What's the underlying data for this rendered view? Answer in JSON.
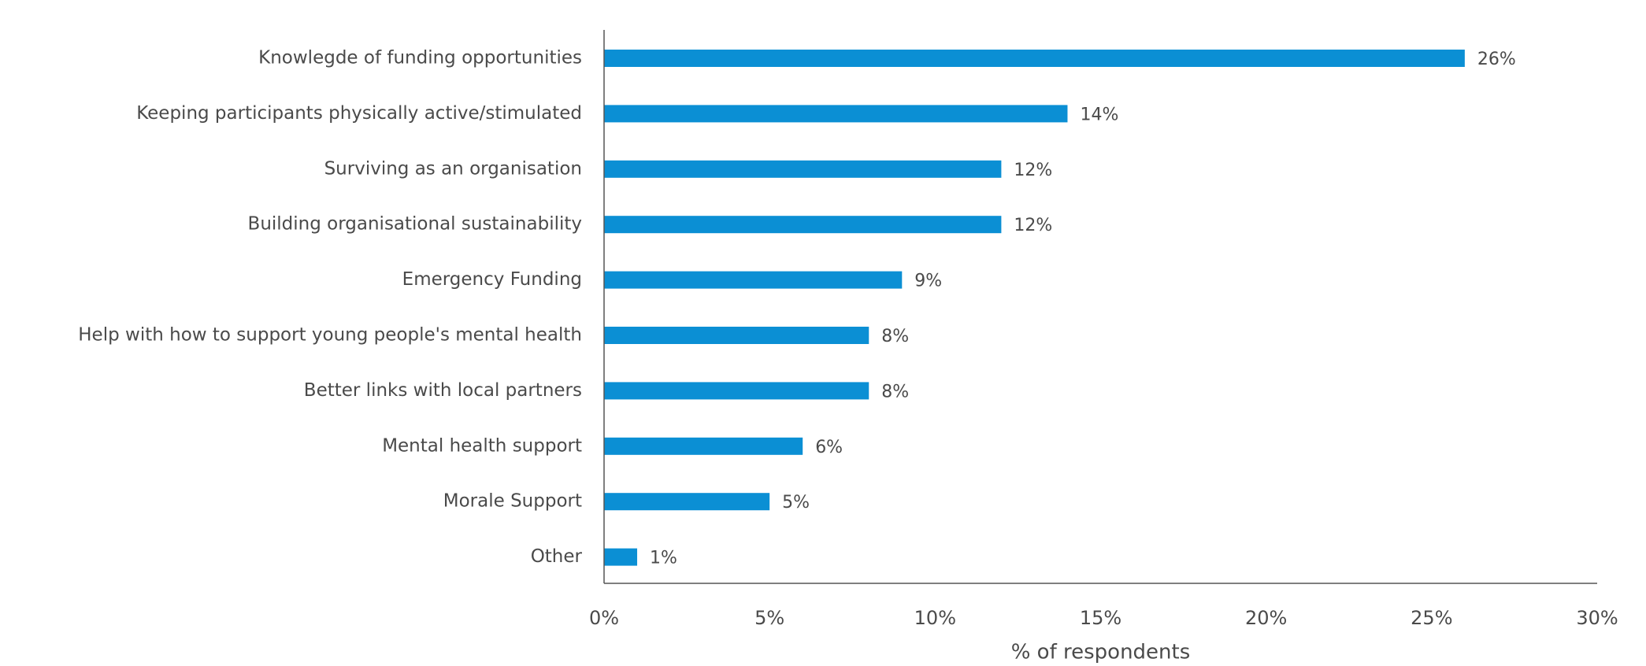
{
  "chart_data": {
    "type": "bar",
    "orientation": "horizontal",
    "categories": [
      "Knowlegde of funding opportunities",
      "Keeping participants physically active/stimulated",
      "Surviving as an organisation",
      "Building organisational sustainability",
      "Emergency Funding",
      "Help with how to support young people's mental health",
      "Better links with local partners",
      "Mental health support",
      "Morale Support",
      "Other"
    ],
    "values": [
      26,
      14,
      12,
      12,
      9,
      8,
      8,
      6,
      5,
      1
    ],
    "value_labels": [
      "26%",
      "14%",
      "12%",
      "12%",
      "9%",
      "8%",
      "8%",
      "6%",
      "5%",
      "1%"
    ],
    "title": "",
    "xlabel": "% of respondents",
    "ylabel": "",
    "xlim": [
      0,
      30
    ],
    "x_ticks": [
      0,
      5,
      10,
      15,
      20,
      25,
      30
    ],
    "x_tick_labels": [
      "0%",
      "5%",
      "10%",
      "15%",
      "20%",
      "25%",
      "30%"
    ],
    "grid": false,
    "legend": "none",
    "bar_color": "#0b8fd4",
    "axis_color": "#555555",
    "text_color": "#4a4a4a"
  }
}
